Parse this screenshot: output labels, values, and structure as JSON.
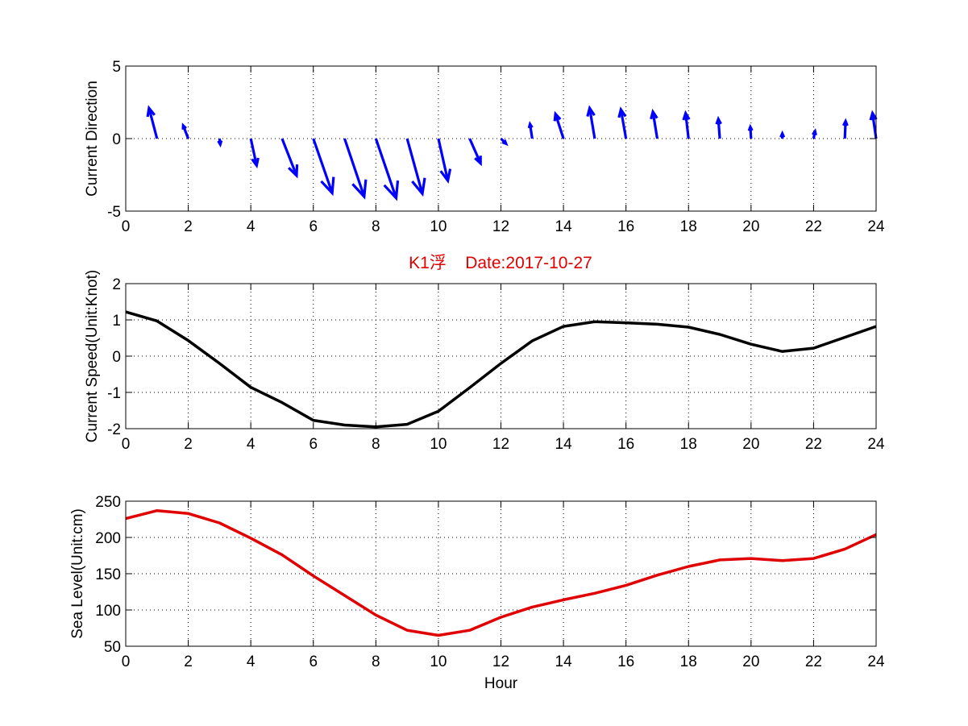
{
  "title": "K1浮    Date:2017-10-27",
  "colors": {
    "arrow": "#0000ff",
    "speed": "#000000",
    "level": "#e00000",
    "title": "#e00000"
  },
  "chart_data": [
    {
      "type": "quiver",
      "ylabel": "Current Direction",
      "xlim": [
        0,
        24
      ],
      "ylim": [
        -5,
        5
      ],
      "xticks": [
        0,
        2,
        4,
        6,
        8,
        10,
        12,
        14,
        16,
        18,
        20,
        22,
        24
      ],
      "yticks": [
        -5,
        0,
        5
      ],
      "grid": true,
      "arrows": [
        {
          "x": 0,
          "u": 0,
          "v": 0
        },
        {
          "x": 1,
          "u": -0.55,
          "v": 2.1
        },
        {
          "x": 2,
          "u": -0.35,
          "v": 0.9
        },
        {
          "x": 3,
          "u": 0.05,
          "v": -0.4
        },
        {
          "x": 4,
          "u": 0.4,
          "v": -1.85
        },
        {
          "x": 5,
          "u": 1.0,
          "v": -2.55
        },
        {
          "x": 6,
          "u": 1.3,
          "v": -3.75
        },
        {
          "x": 7,
          "u": 1.35,
          "v": -4.0
        },
        {
          "x": 8,
          "u": 1.4,
          "v": -4.1
        },
        {
          "x": 9,
          "u": 1.05,
          "v": -3.8
        },
        {
          "x": 10,
          "u": 0.65,
          "v": -2.9
        },
        {
          "x": 11,
          "u": 0.75,
          "v": -1.7
        },
        {
          "x": 12,
          "u": 0.35,
          "v": -0.35
        },
        {
          "x": 13,
          "u": -0.15,
          "v": 1.0
        },
        {
          "x": 14,
          "u": -0.55,
          "v": 1.7
        },
        {
          "x": 15,
          "u": -0.35,
          "v": 2.1
        },
        {
          "x": 16,
          "u": -0.35,
          "v": 2.0
        },
        {
          "x": 17,
          "u": -0.3,
          "v": 1.85
        },
        {
          "x": 18,
          "u": -0.2,
          "v": 1.75
        },
        {
          "x": 19,
          "u": -0.1,
          "v": 1.35
        },
        {
          "x": 20,
          "u": -0.05,
          "v": 0.8
        },
        {
          "x": 21,
          "u": 0.0,
          "v": 0.35
        },
        {
          "x": 22,
          "u": 0.1,
          "v": 0.5
        },
        {
          "x": 23,
          "u": 0.05,
          "v": 1.2
        },
        {
          "x": 24,
          "u": -0.25,
          "v": 1.75
        }
      ]
    },
    {
      "type": "line",
      "ylabel": "Current Speed(Unit:Knot)",
      "xlim": [
        0,
        24
      ],
      "ylim": [
        -2,
        2
      ],
      "xticks": [
        0,
        2,
        4,
        6,
        8,
        10,
        12,
        14,
        16,
        18,
        20,
        22,
        24
      ],
      "yticks": [
        -2,
        -1,
        0,
        1,
        2
      ],
      "grid": true,
      "x": [
        0,
        1,
        2,
        3,
        4,
        5,
        6,
        7,
        8,
        9,
        10,
        11,
        12,
        13,
        14,
        15,
        16,
        17,
        18,
        19,
        20,
        21,
        22,
        23,
        24
      ],
      "y": [
        1.22,
        0.97,
        0.43,
        -0.2,
        -0.86,
        -1.28,
        -1.77,
        -1.9,
        -1.95,
        -1.88,
        -1.52,
        -0.87,
        -0.2,
        0.42,
        0.82,
        0.95,
        0.92,
        0.88,
        0.8,
        0.6,
        0.33,
        0.13,
        0.22,
        0.52,
        0.82
      ]
    },
    {
      "type": "line",
      "ylabel": "Sea Level(Unit:cm)",
      "xlabel": "Hour",
      "xlim": [
        0,
        24
      ],
      "ylim": [
        50,
        250
      ],
      "xticks": [
        0,
        2,
        4,
        6,
        8,
        10,
        12,
        14,
        16,
        18,
        20,
        22,
        24
      ],
      "yticks": [
        50,
        100,
        150,
        200,
        250
      ],
      "grid": true,
      "x": [
        0,
        1,
        2,
        3,
        4,
        5,
        6,
        7,
        8,
        9,
        10,
        11,
        12,
        13,
        14,
        15,
        16,
        17,
        18,
        19,
        20,
        21,
        22,
        23,
        24
      ],
      "y": [
        226,
        237,
        233,
        220,
        199,
        176,
        147,
        120,
        93,
        72,
        65,
        72,
        90,
        104,
        114,
        123,
        134,
        148,
        160,
        169,
        171,
        168,
        171,
        184,
        204
      ]
    }
  ]
}
